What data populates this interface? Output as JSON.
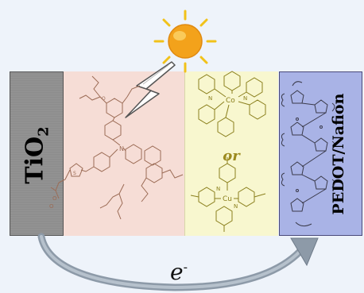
{
  "labels": {
    "tio2_base": "TiO",
    "tio2_sub": "2",
    "or_text": "or",
    "pedot": "PEDOT/Nafion",
    "electron_base": "e",
    "electron_sup": "-"
  },
  "mediator_metals": {
    "cobalt": "Co",
    "copper": "Cu"
  },
  "colors": {
    "background": "#eef3fa",
    "tio2": "#8d8d8d",
    "dye_panel": "#f6ddd6",
    "mediator_panel": "#f8f7cf",
    "pedot_panel": "#a9b3e6",
    "dye_structure": "#9b6b55",
    "mediator_structure": "#8a7f1c",
    "pedot_structure": "#3a3a4a",
    "sun_core": "#f3a21b",
    "sun_rays": "#f1c21a",
    "arrow": "#8d9aa8"
  },
  "icons": [
    "sun-icon",
    "lightning-icon",
    "electron-arrow-icon"
  ]
}
